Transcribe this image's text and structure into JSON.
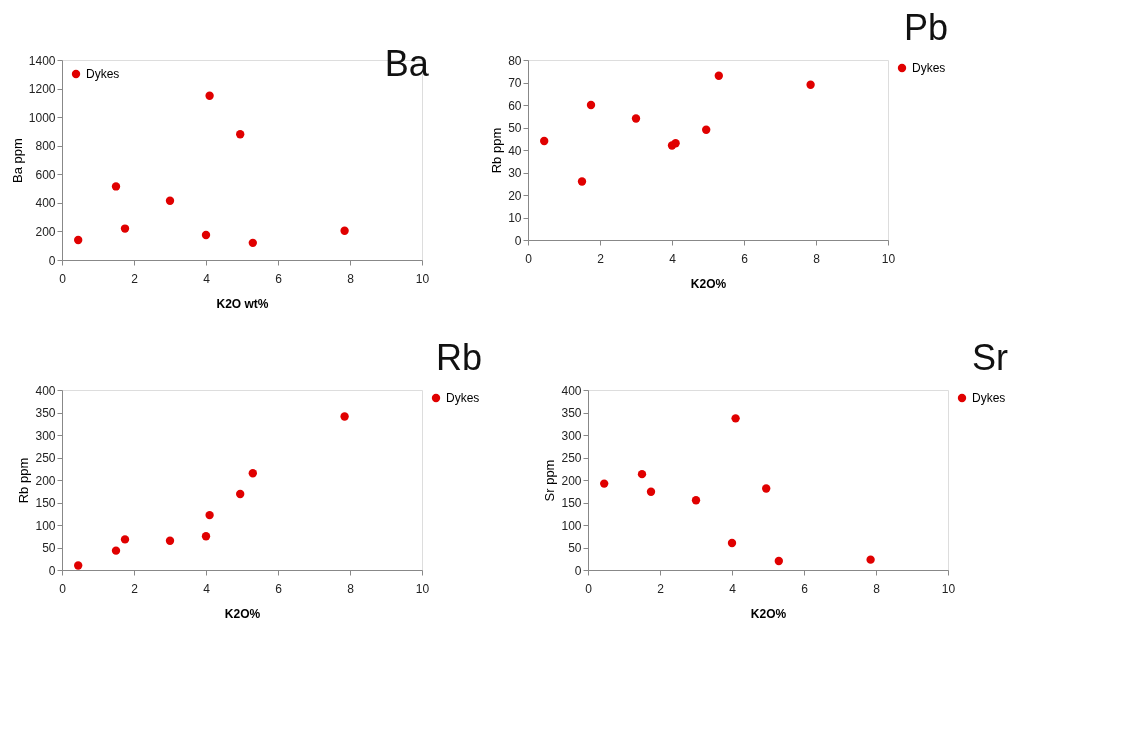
{
  "chart_data": [
    {
      "type": "scatter",
      "title": "Ba",
      "xlabel": "K2O wt%",
      "ylabel": "Ba ppm",
      "x": [
        0.45,
        1.5,
        1.75,
        3.0,
        4.0,
        4.1,
        4.95,
        5.3,
        7.85
      ],
      "series": [
        {
          "name": "Dykes",
          "color": "#e00000",
          "values": [
            140,
            515,
            220,
            415,
            175,
            1150,
            880,
            120,
            205
          ]
        }
      ],
      "xlim": [
        0,
        10
      ],
      "xticks": [
        0,
        2,
        4,
        6,
        8,
        10
      ],
      "ylim": [
        0,
        1400
      ],
      "yticks": [
        0,
        200,
        400,
        600,
        800,
        1000,
        1200,
        1400
      ],
      "legend": "top left",
      "marker": "circle",
      "grid": false
    },
    {
      "type": "scatter",
      "title": "Pb",
      "xlabel": "K2O%",
      "ylabel": "Rb ppm",
      "x": [
        0.45,
        1.5,
        1.75,
        3.0,
        4.0,
        4.1,
        4.95,
        5.3,
        7.85
      ],
      "series": [
        {
          "name": "Dykes",
          "color": "#e00000",
          "values": [
            44,
            26,
            60,
            54,
            42,
            43,
            49,
            73,
            69
          ]
        }
      ],
      "xlim": [
        0,
        10
      ],
      "xticks": [
        0,
        2,
        4,
        6,
        8,
        10
      ],
      "ylim": [
        0,
        80
      ],
      "yticks": [
        0,
        10,
        20,
        30,
        40,
        50,
        60,
        70,
        80
      ],
      "legend": "right",
      "marker": "circle",
      "grid": false
    },
    {
      "type": "scatter",
      "title": "Rb",
      "xlabel": "K2O%",
      "ylabel": "Rb ppm",
      "x": [
        0.45,
        1.5,
        1.75,
        3.0,
        4.0,
        4.1,
        4.95,
        5.3,
        7.85
      ],
      "series": [
        {
          "name": "Dykes",
          "color": "#e00000",
          "values": [
            10,
            43,
            68,
            65,
            75,
            122,
            169,
            215,
            341
          ]
        }
      ],
      "xlim": [
        0,
        10
      ],
      "xticks": [
        0,
        2,
        4,
        6,
        8,
        10
      ],
      "ylim": [
        0,
        400
      ],
      "yticks": [
        0,
        50,
        100,
        150,
        200,
        250,
        300,
        350,
        400
      ],
      "legend": "right",
      "marker": "circle",
      "grid": false
    },
    {
      "type": "scatter",
      "title": "Sr",
      "xlabel": "K2O%",
      "ylabel": "Sr ppm",
      "x": [
        0.45,
        1.5,
        1.75,
        3.0,
        4.0,
        4.1,
        4.95,
        5.3,
        7.85
      ],
      "series": [
        {
          "name": "Dykes",
          "color": "#e00000",
          "values": [
            192,
            213,
            174,
            155,
            60,
            337,
            181,
            20,
            23
          ]
        }
      ],
      "xlim": [
        0,
        10
      ],
      "xticks": [
        0,
        2,
        4,
        6,
        8,
        10
      ],
      "ylim": [
        0,
        400
      ],
      "yticks": [
        0,
        50,
        100,
        150,
        200,
        250,
        300,
        350,
        400
      ],
      "legend": "right",
      "marker": "circle",
      "grid": false
    }
  ]
}
